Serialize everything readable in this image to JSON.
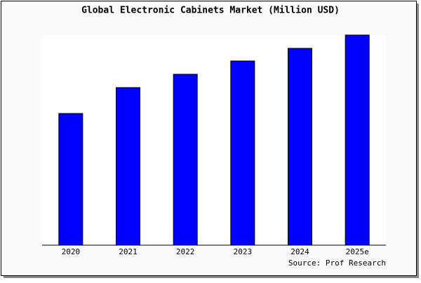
{
  "chart_data": {
    "type": "bar",
    "title": "Global Electronic Cabinets Market (Million USD)",
    "categories": [
      "2020",
      "2021",
      "2022",
      "2023",
      "2024",
      "2025e"
    ],
    "values": [
      188,
      225,
      244,
      263,
      281,
      300
    ],
    "color": "#0000ff",
    "ylim": [
      0,
      300
    ],
    "source": "Source: Prof Research"
  }
}
